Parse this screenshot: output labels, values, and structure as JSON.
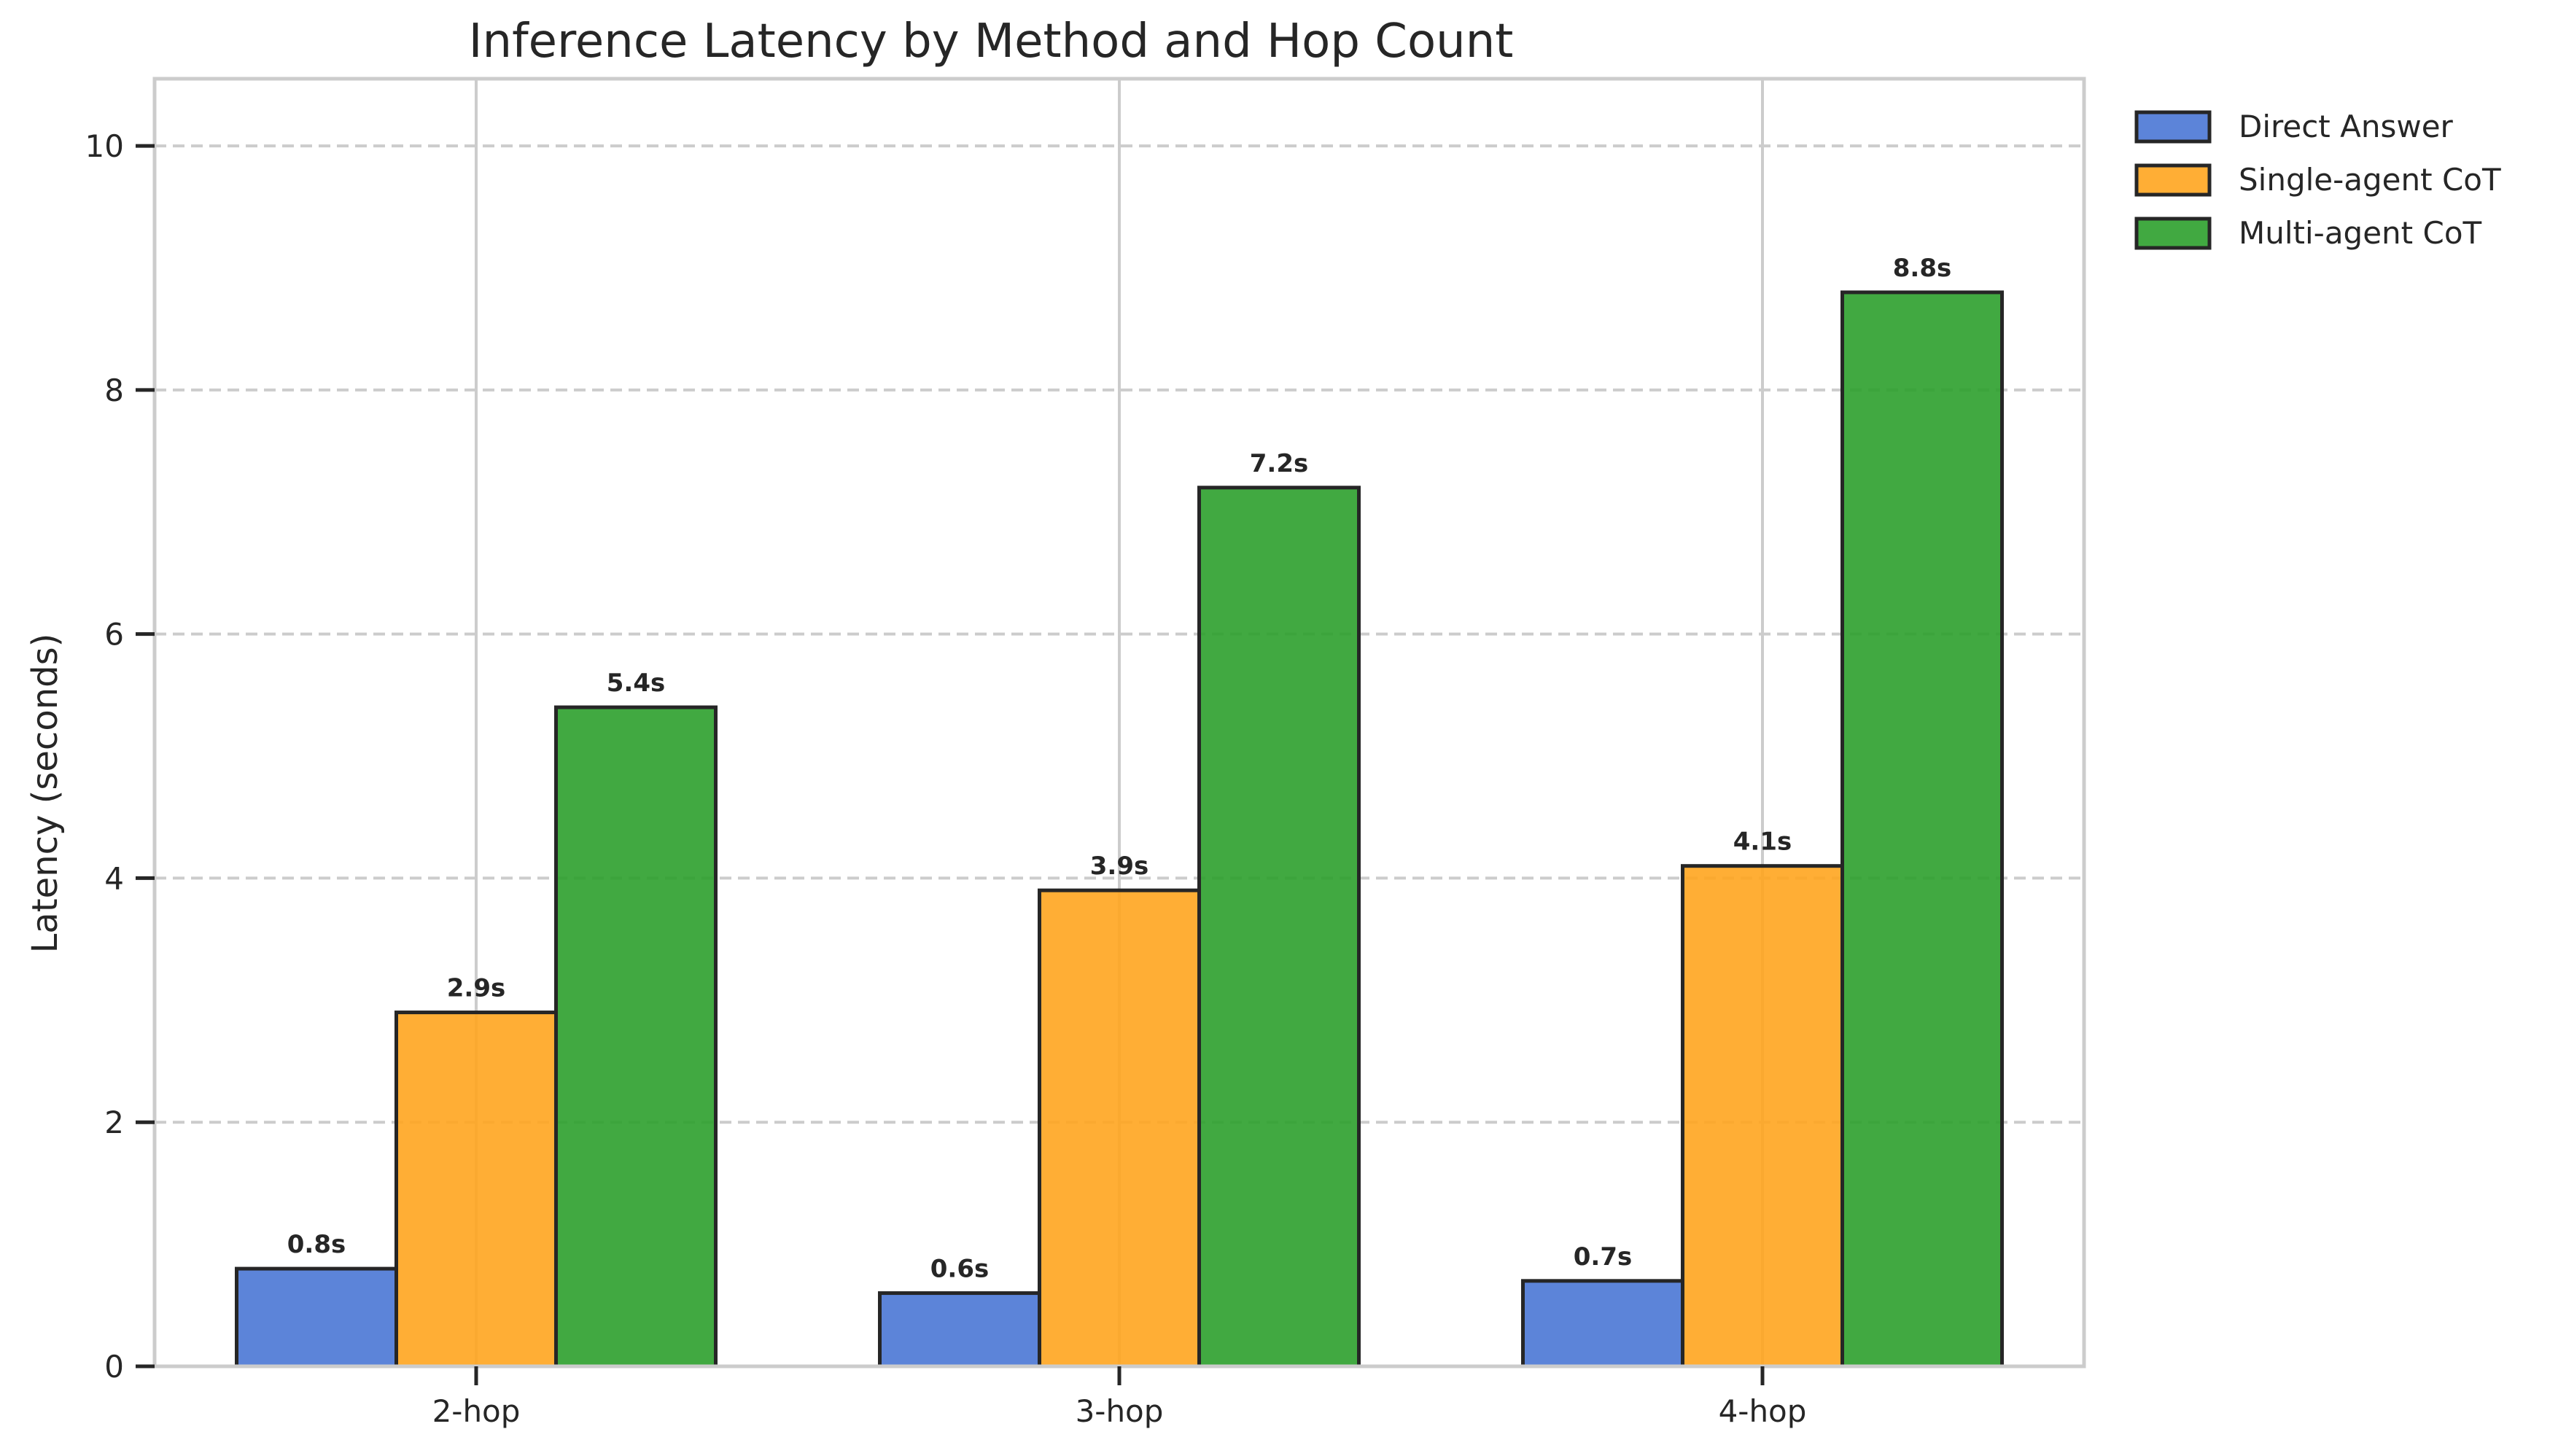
{
  "chart_data": {
    "type": "bar",
    "title": "Inference Latency by Method and Hop Count",
    "xlabel": "",
    "ylabel": "Latency (seconds)",
    "categories": [
      "2-hop",
      "3-hop",
      "4-hop"
    ],
    "ylim": [
      0,
      10.55
    ],
    "yticks": [
      0,
      2,
      4,
      6,
      8,
      10
    ],
    "grid": true,
    "legend_position": "outside-top-right",
    "series": [
      {
        "name": "Direct Answer",
        "color": "#4a77d5",
        "values": [
          0.8,
          0.6,
          0.7
        ],
        "labels": [
          "0.8s",
          "0.6s",
          "0.7s"
        ]
      },
      {
        "name": "Single-agent CoT",
        "color": "#ffa51f",
        "values": [
          2.9,
          3.9,
          4.1
        ],
        "labels": [
          "2.9s",
          "3.9s",
          "4.1s"
        ]
      },
      {
        "name": "Multi-agent CoT",
        "color": "#2ca02c",
        "values": [
          5.4,
          7.2,
          8.8
        ],
        "labels": [
          "5.4s",
          "7.2s",
          "8.8s"
        ]
      }
    ]
  }
}
